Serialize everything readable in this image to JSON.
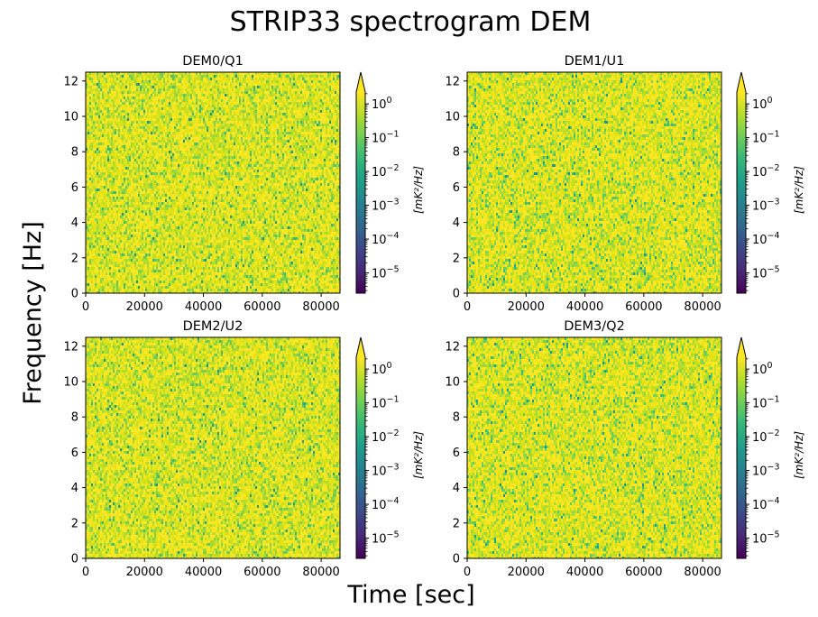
{
  "figure": {
    "title": "STRIP33 spectrogram DEM",
    "xlabel": "Time [sec]",
    "ylabel": "Frequency [Hz]"
  },
  "colormap": {
    "name": "viridis",
    "stops": [
      "#440154",
      "#482878",
      "#3e4989",
      "#31688e",
      "#26828e",
      "#1f9e89",
      "#35b779",
      "#6ece58",
      "#b5de2b",
      "#fde725"
    ],
    "dominant_colors": [
      "#fde725",
      "#e2e418",
      "#c2df23",
      "#a0da39",
      "#7ad151",
      "#5ec962",
      "#3bbb75",
      "#1fa187",
      "#21918c"
    ]
  },
  "chart_data": [
    {
      "type": "heatmap",
      "title": "DEM0/Q1",
      "x_range": [
        0,
        86400
      ],
      "y_range": [
        0,
        12.5
      ],
      "x_ticks": [
        "0",
        "20000",
        "40000",
        "60000",
        "80000"
      ],
      "y_ticks": [
        "0",
        "2",
        "4",
        "6",
        "8",
        "10",
        "12"
      ],
      "colorbar": {
        "label": "[mK²/Hz]",
        "scale": "log",
        "range_exp": [
          -5.6,
          0.35
        ],
        "ticks": [
          {
            "base": "10",
            "exp": "0",
            "value": 0
          },
          {
            "base": "10",
            "exp": "−1",
            "value": -1
          },
          {
            "base": "10",
            "exp": "−2",
            "value": -2
          },
          {
            "base": "10",
            "exp": "−3",
            "value": -3
          },
          {
            "base": "10",
            "exp": "−4",
            "value": -4
          },
          {
            "base": "10",
            "exp": "−5",
            "value": -5
          }
        ],
        "extend": "max"
      },
      "note": "Dense noise spectrogram, values mostly near 10^-0.5 to 10^0 (yellow/yellow-green) with scattered green-teal specks."
    },
    {
      "type": "heatmap",
      "title": "DEM1/U1",
      "x_range": [
        0,
        86400
      ],
      "y_range": [
        0,
        12.5
      ],
      "x_ticks": [
        "0",
        "20000",
        "40000",
        "60000",
        "80000"
      ],
      "y_ticks": [
        "0",
        "2",
        "4",
        "6",
        "8",
        "10",
        "12"
      ],
      "colorbar": {
        "label": "[mK²/Hz]",
        "scale": "log",
        "range_exp": [
          -5.6,
          0.35
        ],
        "ticks": [
          {
            "base": "10",
            "exp": "0",
            "value": 0
          },
          {
            "base": "10",
            "exp": "−1",
            "value": -1
          },
          {
            "base": "10",
            "exp": "−2",
            "value": -2
          },
          {
            "base": "10",
            "exp": "−3",
            "value": -3
          },
          {
            "base": "10",
            "exp": "−4",
            "value": -4
          },
          {
            "base": "10",
            "exp": "−5",
            "value": -5
          }
        ],
        "extend": "max"
      },
      "note": "Dense noise spectrogram, values mostly near 10^-0.5 to 10^0."
    },
    {
      "type": "heatmap",
      "title": "DEM2/U2",
      "x_range": [
        0,
        86400
      ],
      "y_range": [
        0,
        12.5
      ],
      "x_ticks": [
        "0",
        "20000",
        "40000",
        "60000",
        "80000"
      ],
      "y_ticks": [
        "0",
        "2",
        "4",
        "6",
        "8",
        "10",
        "12"
      ],
      "colorbar": {
        "label": "[mK²/Hz]",
        "scale": "log",
        "range_exp": [
          -5.6,
          0.35
        ],
        "ticks": [
          {
            "base": "10",
            "exp": "0",
            "value": 0
          },
          {
            "base": "10",
            "exp": "−1",
            "value": -1
          },
          {
            "base": "10",
            "exp": "−2",
            "value": -2
          },
          {
            "base": "10",
            "exp": "−3",
            "value": -3
          },
          {
            "base": "10",
            "exp": "−4",
            "value": -4
          },
          {
            "base": "10",
            "exp": "−5",
            "value": -5
          }
        ],
        "extend": "max"
      },
      "note": "Dense noise spectrogram, values mostly near 10^-0.5 to 10^0."
    },
    {
      "type": "heatmap",
      "title": "DEM3/Q2",
      "x_range": [
        0,
        86400
      ],
      "y_range": [
        0,
        12.5
      ],
      "x_ticks": [
        "0",
        "20000",
        "40000",
        "60000",
        "80000"
      ],
      "y_ticks": [
        "0",
        "2",
        "4",
        "6",
        "8",
        "10",
        "12"
      ],
      "colorbar": {
        "label": "[mK²/Hz]",
        "scale": "log",
        "range_exp": [
          -5.6,
          0.35
        ],
        "ticks": [
          {
            "base": "10",
            "exp": "0",
            "value": 0
          },
          {
            "base": "10",
            "exp": "−1",
            "value": -1
          },
          {
            "base": "10",
            "exp": "−2",
            "value": -2
          },
          {
            "base": "10",
            "exp": "−3",
            "value": -3
          },
          {
            "base": "10",
            "exp": "−4",
            "value": -4
          },
          {
            "base": "10",
            "exp": "−5",
            "value": -5
          }
        ],
        "extend": "max"
      },
      "note": "Dense noise spectrogram, values mostly near 10^-0.5 to 10^0."
    }
  ]
}
